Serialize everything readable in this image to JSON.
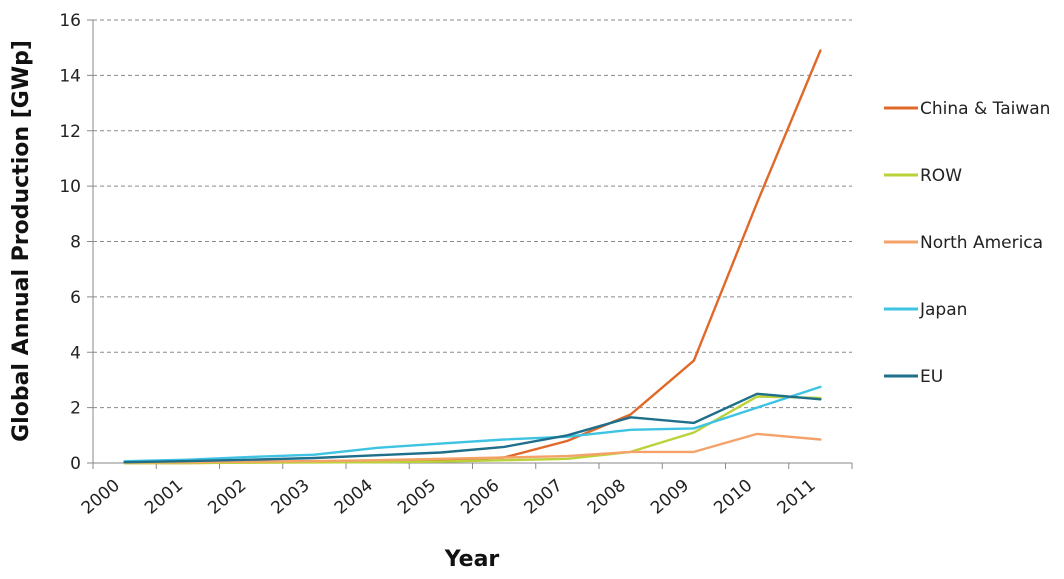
{
  "chart_data": {
    "type": "line",
    "title": "",
    "xlabel": "Year",
    "ylabel": "Global Annual Production [GWp]",
    "categories": [
      "2000",
      "2001",
      "2002",
      "2003",
      "2004",
      "2005",
      "2006",
      "2007",
      "2008",
      "2009",
      "2010",
      "2011"
    ],
    "ylim": [
      0,
      16
    ],
    "yticks": [
      0,
      2,
      4,
      6,
      8,
      10,
      12,
      14,
      16
    ],
    "grid": true,
    "legend_position": "right",
    "series": [
      {
        "name": "China & Taiwan",
        "color": "#E0692A",
        "values": [
          0.0,
          0.0,
          0.02,
          0.03,
          0.05,
          0.1,
          0.2,
          0.8,
          1.75,
          3.7,
          9.4,
          14.9
        ]
      },
      {
        "name": "ROW",
        "color": "#BBD23A",
        "values": [
          0.0,
          0.0,
          0.01,
          0.02,
          0.03,
          0.05,
          0.1,
          0.15,
          0.4,
          1.1,
          2.4,
          2.35
        ]
      },
      {
        "name": "North America",
        "color": "#F4A26A",
        "values": [
          0.02,
          0.03,
          0.05,
          0.07,
          0.1,
          0.15,
          0.2,
          0.25,
          0.4,
          0.4,
          1.05,
          0.85
        ]
      },
      {
        "name": "Japan",
        "color": "#3EC3E3",
        "values": [
          0.06,
          0.12,
          0.22,
          0.3,
          0.55,
          0.7,
          0.85,
          0.95,
          1.2,
          1.25,
          2.0,
          2.75
        ]
      },
      {
        "name": "EU",
        "color": "#1F6F8A",
        "values": [
          0.03,
          0.07,
          0.12,
          0.18,
          0.28,
          0.38,
          0.58,
          1.0,
          1.65,
          1.45,
          2.5,
          2.3
        ]
      }
    ]
  }
}
